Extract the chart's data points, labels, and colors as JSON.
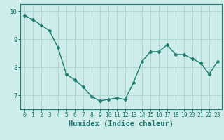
{
  "x": [
    0,
    1,
    2,
    3,
    4,
    5,
    6,
    7,
    8,
    9,
    10,
    11,
    12,
    13,
    14,
    15,
    16,
    17,
    18,
    19,
    20,
    21,
    22,
    23
  ],
  "y": [
    9.85,
    9.7,
    9.5,
    9.3,
    8.7,
    7.75,
    7.55,
    7.3,
    6.95,
    6.8,
    6.85,
    6.9,
    6.85,
    7.45,
    8.2,
    8.55,
    8.55,
    8.8,
    8.45,
    8.45,
    8.3,
    8.15,
    7.75,
    8.2
  ],
  "line_color": "#1a7a6e",
  "marker": "D",
  "marker_size": 2.5,
  "bg_color": "#cdecea",
  "grid_color": "#aed8d4",
  "axis_color": "#1a7a6e",
  "xlabel": "Humidex (Indice chaleur)",
  "xlabel_fontsize": 7.5,
  "ytick_labels": [
    "7",
    "8",
    "9",
    "10"
  ],
  "yticks": [
    7,
    8,
    9,
    10
  ],
  "xticks": [
    0,
    1,
    2,
    3,
    4,
    5,
    6,
    7,
    8,
    9,
    10,
    11,
    12,
    13,
    14,
    15,
    16,
    17,
    18,
    19,
    20,
    21,
    22,
    23
  ],
  "ylim": [
    6.5,
    10.25
  ],
  "xlim": [
    -0.5,
    23.5
  ]
}
